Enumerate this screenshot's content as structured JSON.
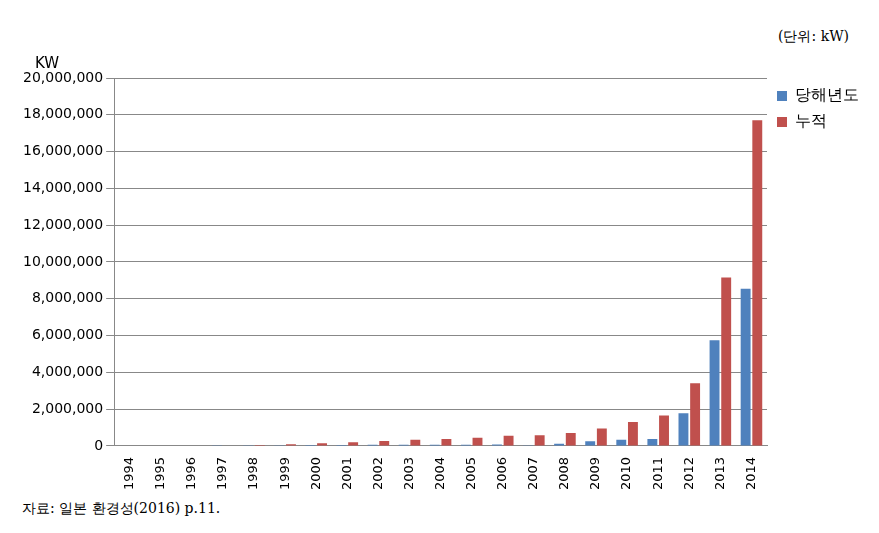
{
  "chart_data": {
    "type": "bar",
    "unit": "(단위: kW)",
    "y_label": "KW",
    "source": "자료: 일본 환경성(2016) p.11.",
    "categories": [
      "1994",
      "1995",
      "1996",
      "1997",
      "1998",
      "1999",
      "2000",
      "2001",
      "2002",
      "2003",
      "2004",
      "2005",
      "2006",
      "2007",
      "2008",
      "2009",
      "2010",
      "2011",
      "2012",
      "2013",
      "2014"
    ],
    "series": [
      {
        "name": "당해년도",
        "color": "#4f81bd",
        "values": [
          0,
          0,
          0,
          10000,
          30000,
          40000,
          50000,
          50000,
          60000,
          60000,
          60000,
          70000,
          80000,
          40000,
          120000,
          250000,
          330000,
          380000,
          1780000,
          5750000,
          8550000
        ]
      },
      {
        "name": "누적",
        "color": "#c0504d",
        "values": [
          0,
          0,
          0,
          20000,
          50000,
          90000,
          150000,
          200000,
          270000,
          330000,
          380000,
          450000,
          550000,
          580000,
          700000,
          950000,
          1300000,
          1650000,
          3400000,
          9150000,
          17700000
        ]
      }
    ],
    "ylim": [
      0,
      20000000
    ],
    "yticks": [
      0,
      {
        "value": 2000000,
        "label": "2,000,000"
      },
      {
        "value": 4000000,
        "label": "4,000,000"
      },
      {
        "value": 6000000,
        "label": "6,000,000"
      },
      {
        "value": 8000000,
        "label": "8,000,000"
      },
      {
        "value": 10000000,
        "label": "10,000,000"
      },
      {
        "value": 12000000,
        "label": "12,000,000"
      },
      {
        "value": 14000000,
        "label": "14,000,000"
      },
      {
        "value": 16000000,
        "label": "16,000,000"
      },
      {
        "value": 18000000,
        "label": "18,000,000"
      },
      {
        "value": 20000000,
        "label": "20,000,000"
      }
    ],
    "grid": true,
    "legend": "right"
  }
}
